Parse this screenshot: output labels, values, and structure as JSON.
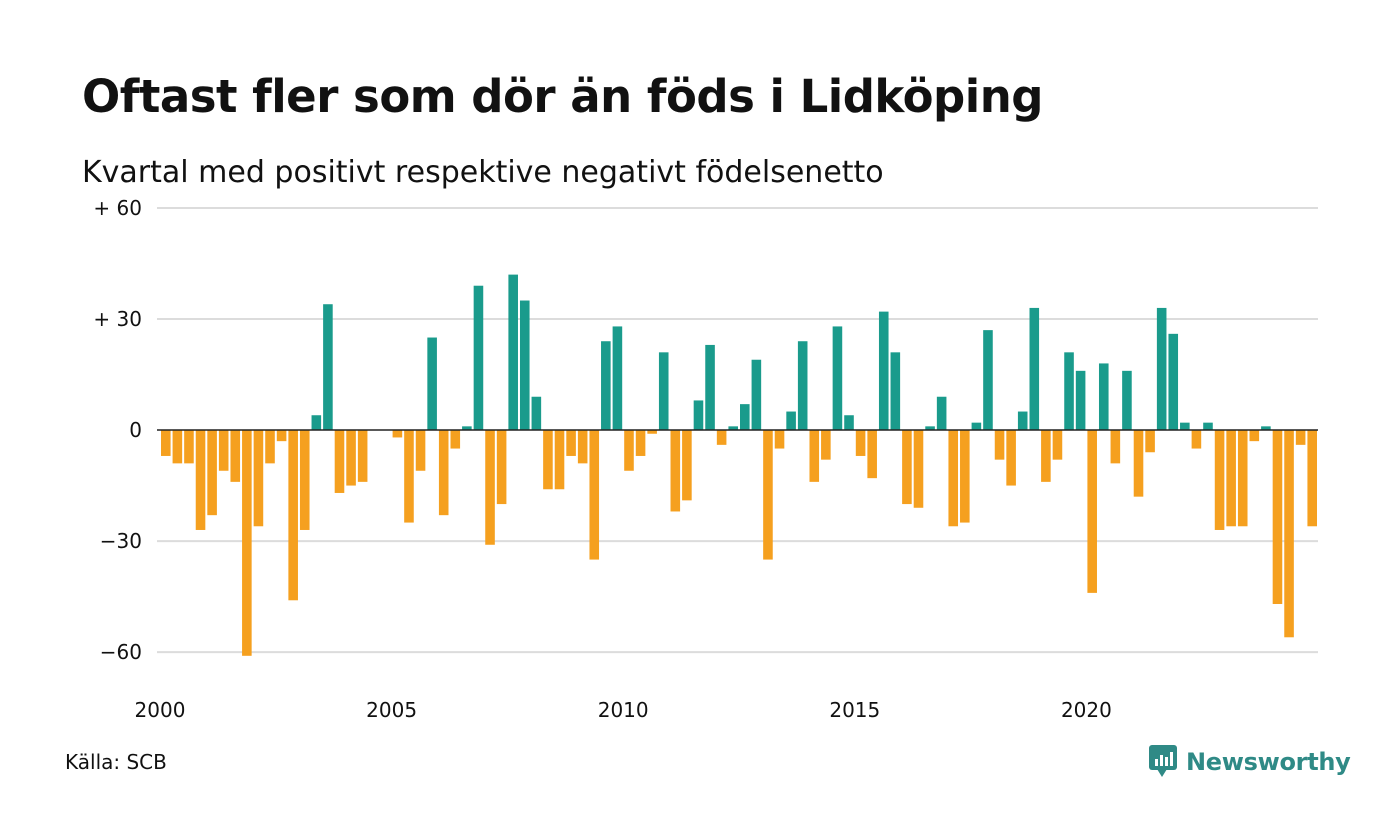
{
  "title": "Oftast fler som dör än föds i Lidköping",
  "subtitle": "Kvartal med positivt respektive negativt födelsenetto",
  "source": "Källa: SCB",
  "brand": {
    "name": "Newsworthy",
    "icon": "newsworthy-logo-icon"
  },
  "colors": {
    "positive": "#1a9b8c",
    "negative": "#f5a01f",
    "grid": "#dcdcdc",
    "zero": "#222222"
  },
  "chart_data": {
    "type": "bar",
    "title": "Oftast fler som dör än föds i Lidköping",
    "subtitle": "Kvartal med positivt respektive negativt födelsenetto",
    "x_start": 2000,
    "x_end": 2025,
    "quarters_per_year": 4,
    "ylim": [
      -67,
      60
    ],
    "yticks": [
      {
        "value": 60,
        "label": "+ 60"
      },
      {
        "value": 30,
        "label": "+ 30"
      },
      {
        "value": 0,
        "label": "0"
      },
      {
        "value": -30,
        "label": "−30"
      },
      {
        "value": -60,
        "label": "−60"
      }
    ],
    "xticks": [
      {
        "value": 2000,
        "label": "2000"
      },
      {
        "value": 2005,
        "label": "2005"
      },
      {
        "value": 2010,
        "label": "2010"
      },
      {
        "value": 2015,
        "label": "2015"
      },
      {
        "value": 2020,
        "label": "2020"
      }
    ],
    "grid": true,
    "values": [
      -7,
      -9,
      -9,
      -27,
      -23,
      -11,
      -14,
      -61,
      -26,
      -9,
      -3,
      -46,
      -27,
      4,
      34,
      -17,
      -15,
      -14,
      0,
      0,
      -2,
      -25,
      -11,
      25,
      -23,
      -5,
      1,
      39,
      -31,
      -20,
      42,
      35,
      9,
      -16,
      -16,
      -7,
      -9,
      -35,
      24,
      28,
      -11,
      -7,
      -1,
      21,
      -22,
      -19,
      8,
      23,
      -4,
      1,
      7,
      19,
      -35,
      -5,
      5,
      24,
      -14,
      -8,
      28,
      4,
      -7,
      -13,
      32,
      21,
      -20,
      -21,
      1,
      9,
      -26,
      -25,
      2,
      27,
      -8,
      -15,
      5,
      33,
      -14,
      -8,
      21,
      16,
      -44,
      18,
      -9,
      16,
      -18,
      -6,
      33,
      26,
      2,
      -5,
      2,
      -27,
      -26,
      -26,
      -3,
      1,
      -47,
      -56,
      -4,
      -26
    ]
  }
}
